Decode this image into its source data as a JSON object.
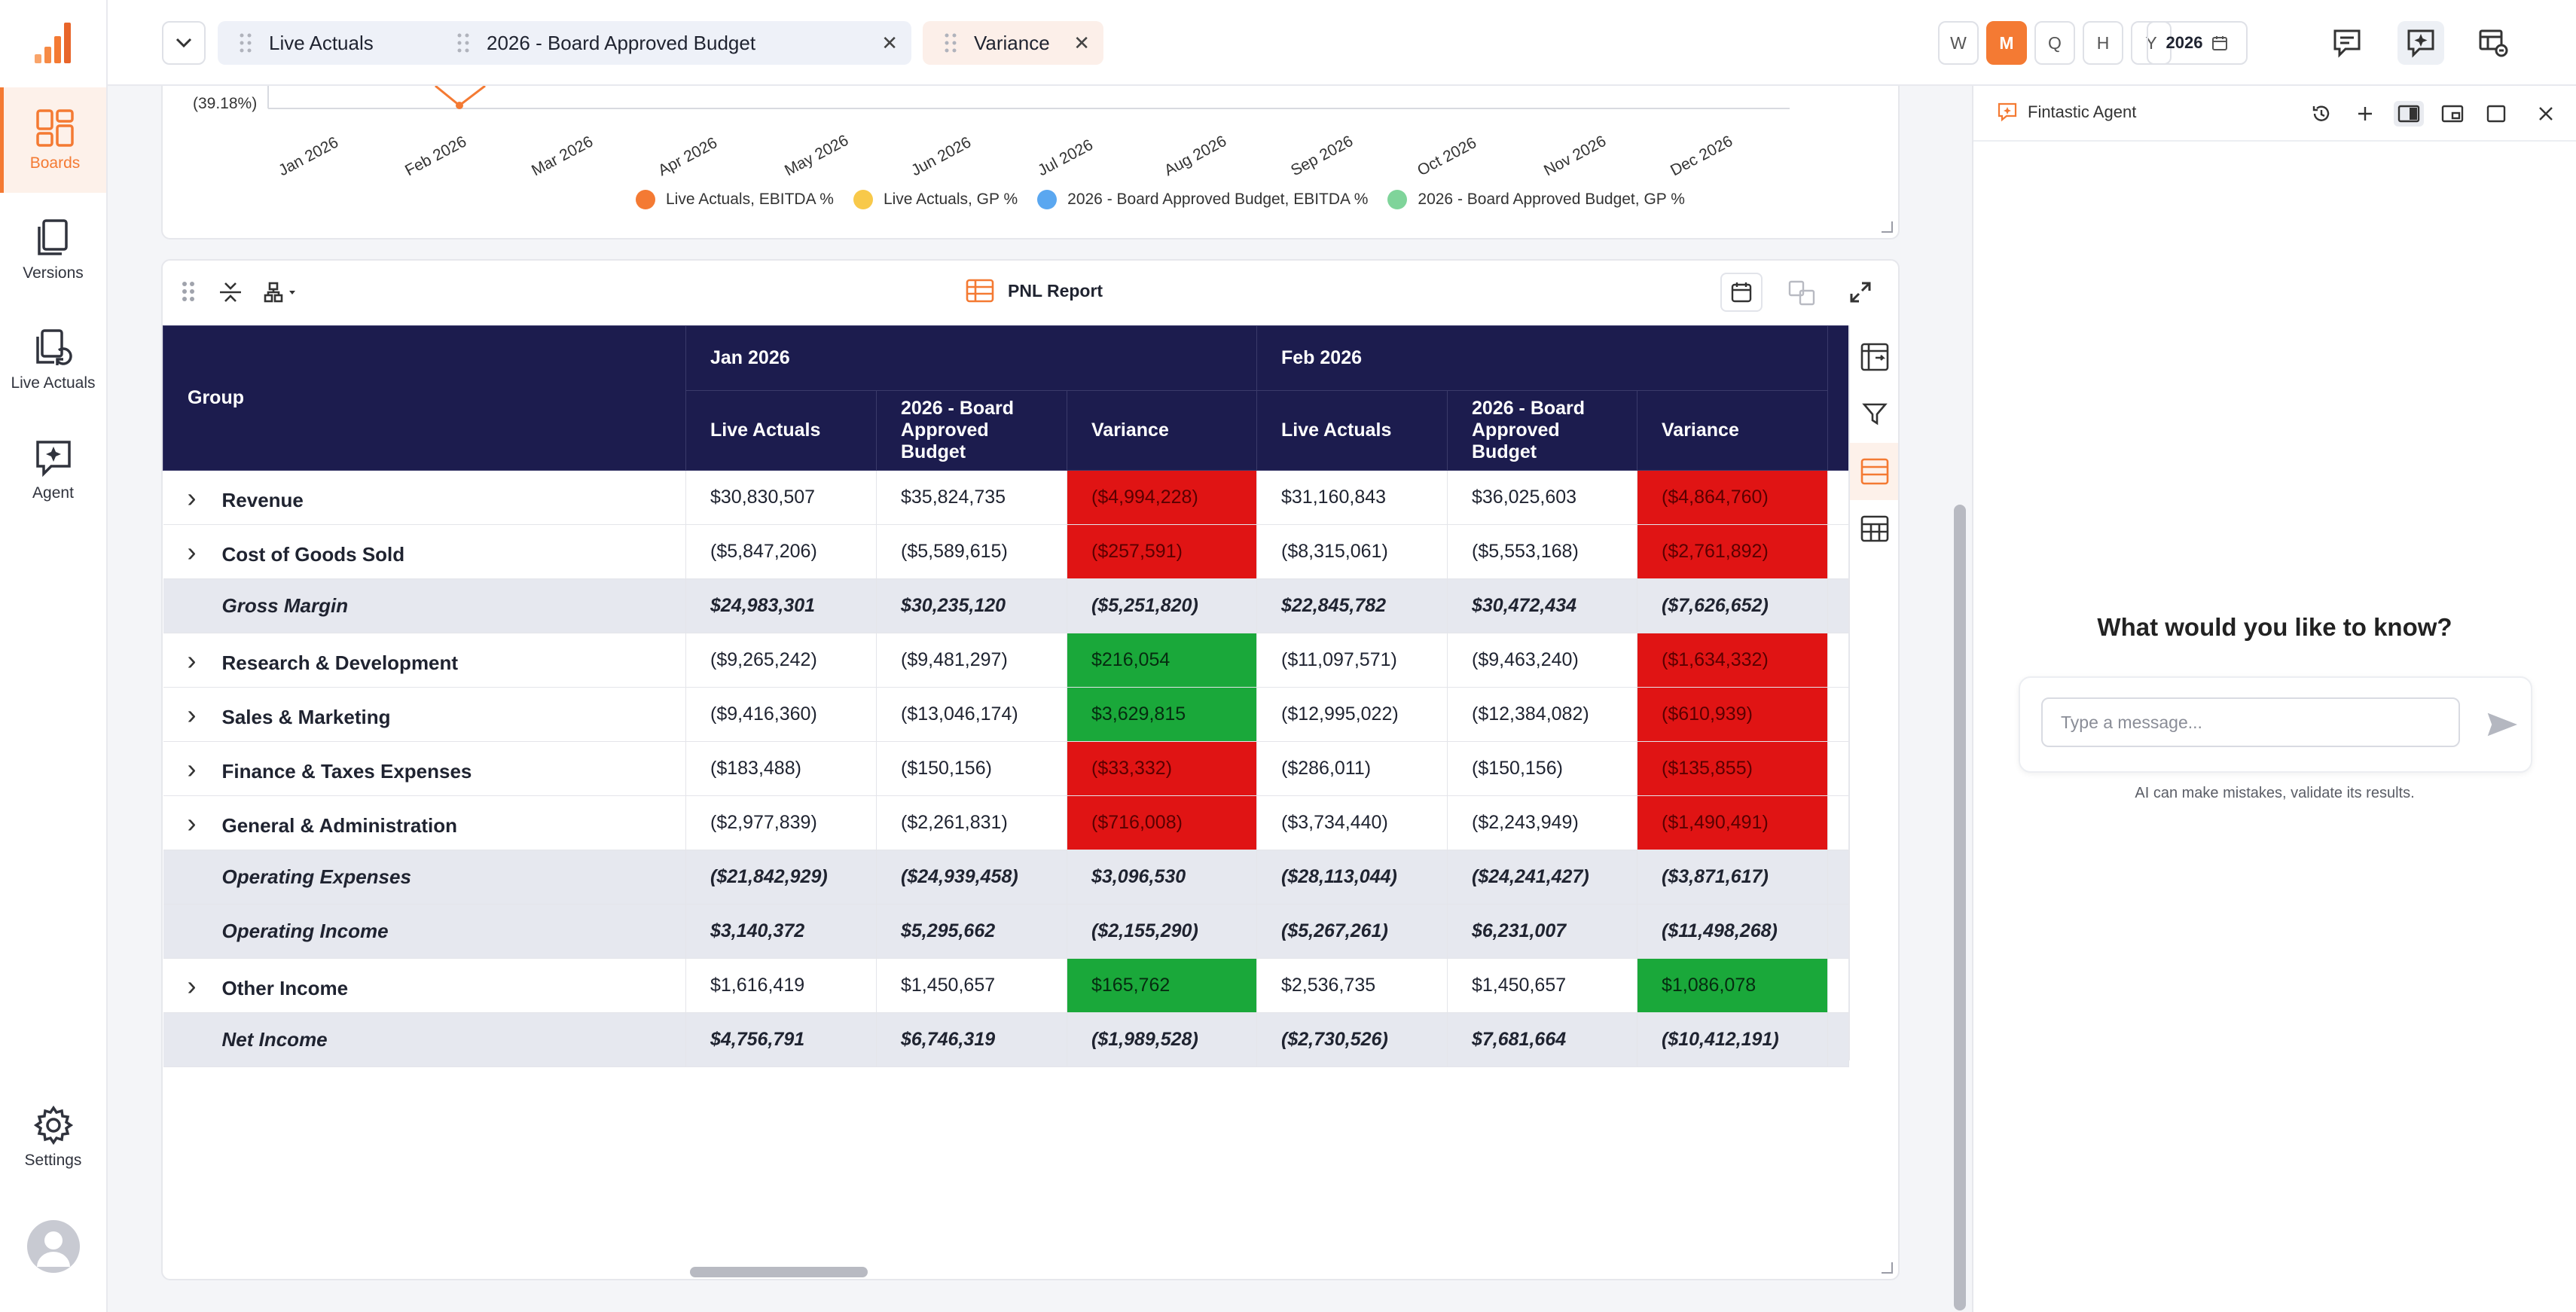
{
  "nav": {
    "items": [
      {
        "label": "Boards",
        "icon": "boards-icon",
        "active": true
      },
      {
        "label": "Versions",
        "icon": "versions-icon"
      },
      {
        "label": "Live Actuals",
        "icon": "live-actuals-icon"
      },
      {
        "label": "Agent",
        "icon": "agent-icon"
      }
    ],
    "settings_label": "Settings"
  },
  "topbar": {
    "chips": [
      {
        "label": "Live Actuals",
        "color": "#eef1f8"
      },
      {
        "label": "2026 - Board Approved Budget",
        "color": "#eef1f8"
      },
      {
        "label": "Variance",
        "color": "#fcefe9"
      }
    ],
    "periods": [
      "W",
      "M",
      "Q",
      "H",
      "Y"
    ],
    "active_period": "M",
    "year": "2026"
  },
  "chart": {
    "y_tick": "(39.18%)",
    "months": [
      "Jan 2026",
      "Feb 2026",
      "Mar 2026",
      "Apr 2026",
      "May 2026",
      "Jun 2026",
      "Jul 2026",
      "Aug 2026",
      "Sep 2026",
      "Oct 2026",
      "Nov 2026",
      "Dec 2026"
    ],
    "legend": [
      {
        "label": "Live Actuals, EBITDA %",
        "color": "#f47a33"
      },
      {
        "label": "Live Actuals, GP %",
        "color": "#f8c94a"
      },
      {
        "label": "2026 - Board Approved Budget, EBITDA %",
        "color": "#5aa7f0"
      },
      {
        "label": "2026 - Board Approved Budget, GP %",
        "color": "#7fd49a"
      }
    ]
  },
  "report": {
    "title": "PNL Report",
    "group_header": "Group",
    "months": [
      "Jan 2026",
      "Feb 2026"
    ],
    "col_headers": [
      "Live Actuals",
      "2026 - Board Approved Budget",
      "Variance"
    ],
    "rows": [
      {
        "name": "Revenue",
        "expand": true,
        "sub": false,
        "vals": [
          "$30,830,507",
          "$35,824,735",
          "($4,994,228)",
          "$31,160,843",
          "$36,025,603",
          "($4,864,760)"
        ],
        "var": [
          "neg",
          "neg"
        ]
      },
      {
        "name": "Cost of Goods Sold",
        "expand": true,
        "sub": false,
        "vals": [
          "($5,847,206)",
          "($5,589,615)",
          "($257,591)",
          "($8,315,061)",
          "($5,553,168)",
          "($2,761,892)"
        ],
        "var": [
          "neg",
          "neg"
        ]
      },
      {
        "name": "Gross Margin",
        "expand": false,
        "sub": true,
        "vals": [
          "$24,983,301",
          "$30,235,120",
          "($5,251,820)",
          "$22,845,782",
          "$30,472,434",
          "($7,626,652)"
        ],
        "var": [
          "",
          ""
        ]
      },
      {
        "name": "Research & Development",
        "expand": true,
        "sub": false,
        "vals": [
          "($9,265,242)",
          "($9,481,297)",
          "$216,054",
          "($11,097,571)",
          "($9,463,240)",
          "($1,634,332)"
        ],
        "var": [
          "pos",
          "neg"
        ]
      },
      {
        "name": "Sales & Marketing",
        "expand": true,
        "sub": false,
        "vals": [
          "($9,416,360)",
          "($13,046,174)",
          "$3,629,815",
          "($12,995,022)",
          "($12,384,082)",
          "($610,939)"
        ],
        "var": [
          "pos",
          "neg"
        ]
      },
      {
        "name": "Finance & Taxes Expenses",
        "expand": true,
        "sub": false,
        "vals": [
          "($183,488)",
          "($150,156)",
          "($33,332)",
          "($286,011)",
          "($150,156)",
          "($135,855)"
        ],
        "var": [
          "neg",
          "neg"
        ]
      },
      {
        "name": "General & Administration",
        "expand": true,
        "sub": false,
        "vals": [
          "($2,977,839)",
          "($2,261,831)",
          "($716,008)",
          "($3,734,440)",
          "($2,243,949)",
          "($1,490,491)"
        ],
        "var": [
          "neg",
          "neg"
        ]
      },
      {
        "name": "Operating Expenses",
        "expand": false,
        "sub": true,
        "vals": [
          "($21,842,929)",
          "($24,939,458)",
          "$3,096,530",
          "($28,113,044)",
          "($24,241,427)",
          "($3,871,617)"
        ],
        "var": [
          "",
          ""
        ]
      },
      {
        "name": "Operating Income",
        "expand": false,
        "sub": true,
        "vals": [
          "$3,140,372",
          "$5,295,662",
          "($2,155,290)",
          "($5,267,261)",
          "$6,231,007",
          "($11,498,268)"
        ],
        "var": [
          "",
          ""
        ]
      },
      {
        "name": "Other Income",
        "expand": true,
        "sub": false,
        "vals": [
          "$1,616,419",
          "$1,450,657",
          "$165,762",
          "$2,536,735",
          "$1,450,657",
          "$1,086,078"
        ],
        "var": [
          "pos",
          "pos"
        ]
      },
      {
        "name": "Net Income",
        "expand": false,
        "sub": true,
        "vals": [
          "$4,756,791",
          "$6,746,319",
          "($1,989,528)",
          "($2,730,526)",
          "$7,681,664",
          "($10,412,191)"
        ],
        "var": [
          "",
          ""
        ]
      }
    ]
  },
  "agent": {
    "title": "Fintastic Agent",
    "prompt": "What would you like to know?",
    "placeholder": "Type a message...",
    "disclaimer": "AI can make mistakes, validate its results."
  }
}
